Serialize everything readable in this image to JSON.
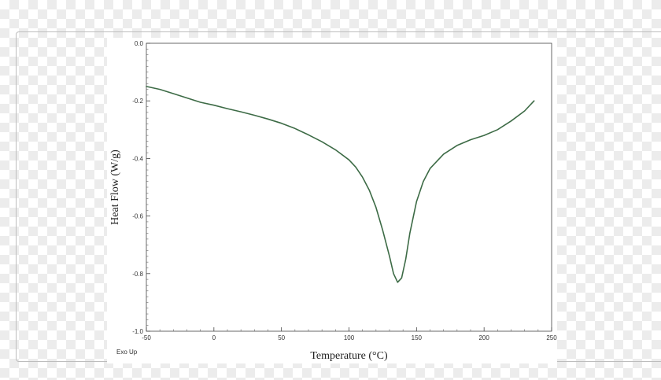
{
  "chart_data": {
    "type": "line",
    "title": "",
    "xlabel": "Temperature (°C)",
    "ylabel": "Heat Flow (W/g)",
    "xlim": [
      -50,
      250
    ],
    "ylim": [
      -1.0,
      0.0
    ],
    "x_ticks": [
      -50,
      0,
      50,
      100,
      150,
      200,
      250
    ],
    "x_tick_labels": [
      "-50",
      "0",
      "50",
      "100",
      "150",
      "200",
      "250"
    ],
    "y_ticks": [
      0.0,
      -0.2,
      -0.4,
      -0.6,
      -0.8,
      -1.0
    ],
    "y_tick_labels": [
      "0.0",
      "-0.2",
      "-0.4",
      "-0.6",
      "-0.8",
      "-1.0"
    ],
    "corner_note": "Exo Up",
    "grid": false,
    "line_color": "#3d6b46",
    "series": [
      {
        "x": [
          -50,
          -40,
          -30,
          -20,
          -10,
          0,
          10,
          20,
          30,
          40,
          50,
          60,
          70,
          80,
          90,
          100,
          105,
          110,
          115,
          120,
          125,
          130,
          133,
          136,
          139,
          142,
          145,
          150,
          155,
          160,
          170,
          180,
          190,
          200,
          210,
          220,
          230,
          237
        ],
        "y": [
          -0.15,
          -0.16,
          -0.175,
          -0.19,
          -0.205,
          -0.215,
          -0.227,
          -0.238,
          -0.25,
          -0.263,
          -0.278,
          -0.296,
          -0.318,
          -0.342,
          -0.37,
          -0.405,
          -0.43,
          -0.465,
          -0.51,
          -0.57,
          -0.65,
          -0.74,
          -0.8,
          -0.83,
          -0.815,
          -0.75,
          -0.66,
          -0.55,
          -0.48,
          -0.435,
          -0.385,
          -0.355,
          -0.335,
          -0.32,
          -0.3,
          -0.27,
          -0.235,
          -0.2
        ]
      }
    ]
  }
}
